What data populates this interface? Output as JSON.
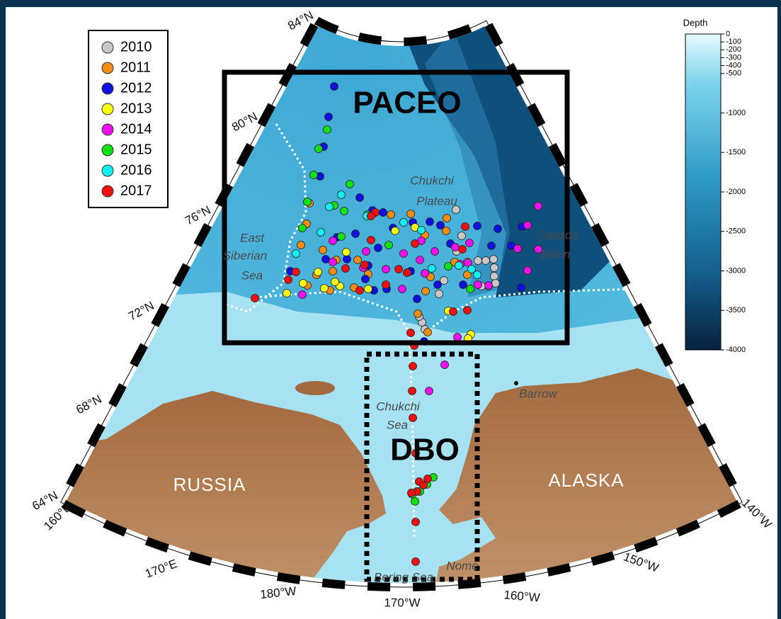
{
  "legend": {
    "items": [
      {
        "label": "2010",
        "color": "#c8c8c8"
      },
      {
        "label": "2011",
        "color": "#f28c12"
      },
      {
        "label": "2012",
        "color": "#1010e0"
      },
      {
        "label": "2013",
        "color": "#ffff10"
      },
      {
        "label": "2014",
        "color": "#f010f0"
      },
      {
        "label": "2015",
        "color": "#10e010"
      },
      {
        "label": "2016",
        "color": "#10f0f0"
      },
      {
        "label": "2017",
        "color": "#f01010"
      }
    ]
  },
  "colorbar": {
    "title": "Depth",
    "lim": [
      0,
      -4000
    ],
    "ticks": [
      0,
      -100,
      -200,
      -300,
      -400,
      -500,
      -1000,
      -1500,
      -2000,
      -2500,
      -3000,
      -3500,
      -4000
    ]
  },
  "regions": {
    "paceo": "PACEO",
    "dbo": "DBO"
  },
  "countries": [
    "RUSSIA",
    "ALASKA"
  ],
  "places": [
    "Chukchi",
    "Plateau",
    "East",
    "Siberian",
    "Sea",
    "Canada",
    "Basin",
    "Chukchi",
    "Sea",
    "Barrow",
    "Bering Sea",
    "Nome"
  ],
  "latitudes": [
    "84°N",
    "80°N",
    "76°N",
    "72°N",
    "68°N",
    "64°N"
  ],
  "longitudes": [
    "160°E",
    "170°E",
    "180°W",
    "170°W",
    "160°W",
    "150°W",
    "140°W"
  ]
}
